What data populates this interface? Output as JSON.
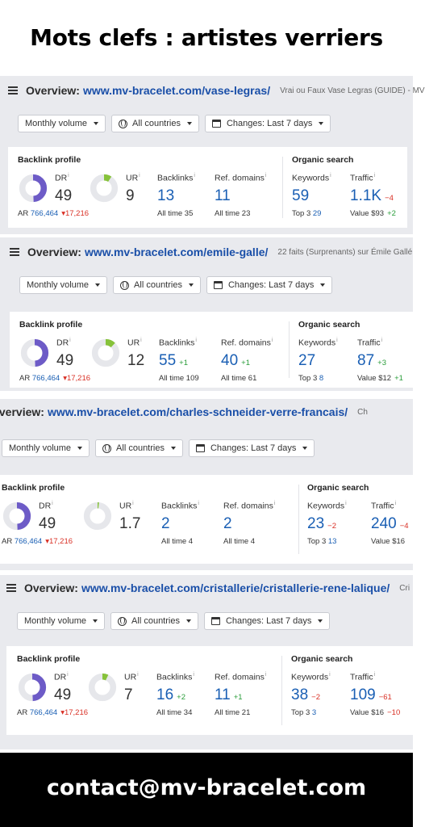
{
  "page_title": "Mots clefs : artistes verriers",
  "footer_contact": "contact@mv-bracelet.com",
  "common": {
    "overview_label": "Overview:",
    "volume_filter": "Monthly volume",
    "countries_filter": "All countries",
    "changes_filter": "Changes: Last 7 days",
    "backlink_profile": "Backlink profile",
    "organic_search": "Organic search",
    "dr_label": "DR",
    "ur_label": "UR",
    "backlinks_label": "Backlinks",
    "refdomains_label": "Ref. domains",
    "keywords_label": "Keywords",
    "traffic_label": "Traffic",
    "info_mark": "i",
    "ar_label": "AR",
    "ar_value": "766,464",
    "ar_delta": "17,216",
    "all_time_label": "All time",
    "top3_label": "Top 3",
    "value_label": "Value"
  },
  "panels": [
    {
      "url": "www.mv-bracelet.com/vase-legras/",
      "page_title": "Vrai ou Faux Vase Legras (GUIDE) - MV",
      "dr": "49",
      "dr_fill": 0.49,
      "ur": "9",
      "ur_fill": 0.09,
      "backlinks": "13",
      "backlinks_delta": "",
      "backlinks_all_time": "35",
      "ref_domains": "11",
      "ref_domains_delta": "",
      "ref_domains_all_time": "23",
      "keywords": "59",
      "keywords_delta": "",
      "top3": "29",
      "traffic": "1.1K",
      "traffic_delta": "4",
      "value": "$93",
      "value_delta": "+2"
    },
    {
      "url": "www.mv-bracelet.com/emile-galle/",
      "page_title": "22 faits (Surprenants) sur Émile Gallé",
      "dr": "49",
      "dr_fill": 0.49,
      "ur": "12",
      "ur_fill": 0.12,
      "backlinks": "55",
      "backlinks_delta": "+1",
      "backlinks_all_time": "109",
      "ref_domains": "40",
      "ref_domains_delta": "+1",
      "ref_domains_all_time": "61",
      "keywords": "27",
      "keywords_delta": "",
      "top3": "8",
      "traffic": "87",
      "traffic_delta": "+3",
      "value": "$12",
      "value_delta": "+1"
    },
    {
      "url": "www.mv-bracelet.com/charles-schneider-verre-francais/",
      "page_title": "Ch",
      "dr": "49",
      "dr_fill": 0.49,
      "ur": "1.7",
      "ur_fill": 0.017,
      "backlinks": "2",
      "backlinks_delta": "",
      "backlinks_all_time": "4",
      "ref_domains": "2",
      "ref_domains_delta": "",
      "ref_domains_all_time": "4",
      "keywords": "23",
      "keywords_delta": "2",
      "top3": "13",
      "traffic": "240",
      "traffic_delta": "4",
      "value": "$16",
      "value_delta": ""
    },
    {
      "url": "www.mv-bracelet.com/cristallerie/cristallerie-rene-lalique/",
      "page_title": "Cri",
      "dr": "49",
      "dr_fill": 0.49,
      "ur": "7",
      "ur_fill": 0.07,
      "backlinks": "16",
      "backlinks_delta": "+2",
      "backlinks_all_time": "34",
      "ref_domains": "11",
      "ref_domains_delta": "+1",
      "ref_domains_all_time": "21",
      "keywords": "38",
      "keywords_delta": "2",
      "top3": "3",
      "traffic": "109",
      "traffic_delta": "61",
      "value": "$16",
      "value_delta": "10"
    }
  ],
  "colors": {
    "dr_ring": "#6d5bc7",
    "ur_ring": "#86c23a",
    "ring_track": "#e6e7eb",
    "link_blue": "#1a5fb4",
    "url_blue": "#1a4fa8",
    "positive": "#2a9d3a",
    "negative": "#d93025"
  }
}
